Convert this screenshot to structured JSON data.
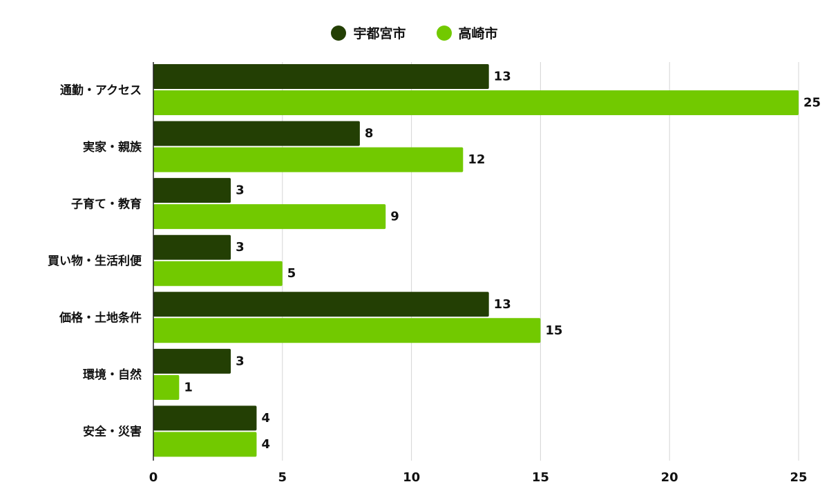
{
  "chart_data": {
    "type": "bar",
    "orientation": "horizontal",
    "categories": [
      "通勤・アクセス",
      "実家・親族",
      "子育て・教育",
      "買い物・生活利便",
      "価格・土地条件",
      "環境・自然",
      "安全・災害"
    ],
    "series": [
      {
        "name": "宇都宮市",
        "values": [
          13,
          8,
          3,
          3,
          13,
          3,
          4
        ],
        "color": "#233f04"
      },
      {
        "name": "高崎市",
        "values": [
          25,
          12,
          9,
          5,
          15,
          1,
          4
        ],
        "color": "#72c900"
      }
    ],
    "xlim": [
      0,
      25
    ],
    "xticks": [
      0,
      5,
      10,
      15,
      20,
      25
    ],
    "grid": true,
    "legend_position": "top-center",
    "data_labels": true
  }
}
